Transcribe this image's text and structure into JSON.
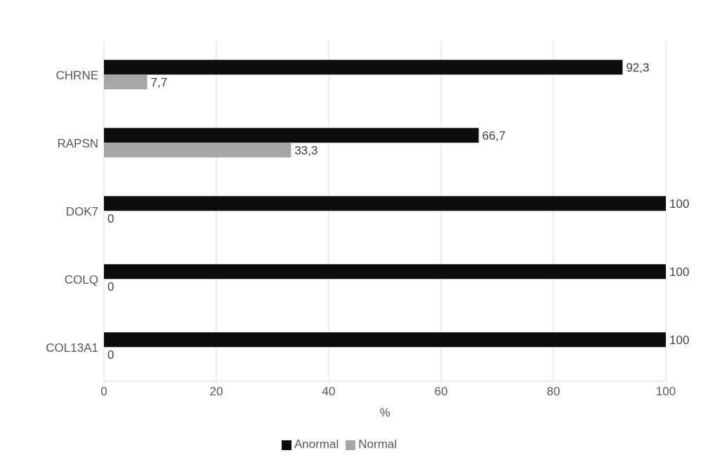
{
  "chart_data": {
    "type": "bar",
    "orientation": "horizontal",
    "categories": [
      "CHRNE",
      "RAPSN",
      "DOK7",
      "COLQ",
      "COL13A1"
    ],
    "series": [
      {
        "name": "Anormal",
        "color": "#0d0d0d",
        "values": [
          92.3,
          66.7,
          100,
          100,
          100
        ],
        "value_labels": [
          "92,3",
          "66,7",
          "100",
          "100",
          "100"
        ]
      },
      {
        "name": "Normal",
        "color": "#a6a6a6",
        "values": [
          7.7,
          33.3,
          0,
          0,
          0
        ],
        "value_labels": [
          "7,7",
          "33,3",
          "0",
          "0",
          "0"
        ]
      }
    ],
    "xlabel": "%",
    "xlim": [
      0,
      100
    ],
    "xticks": [
      0,
      20,
      40,
      60,
      80,
      100
    ],
    "grid": "x",
    "legend": "bottom"
  }
}
